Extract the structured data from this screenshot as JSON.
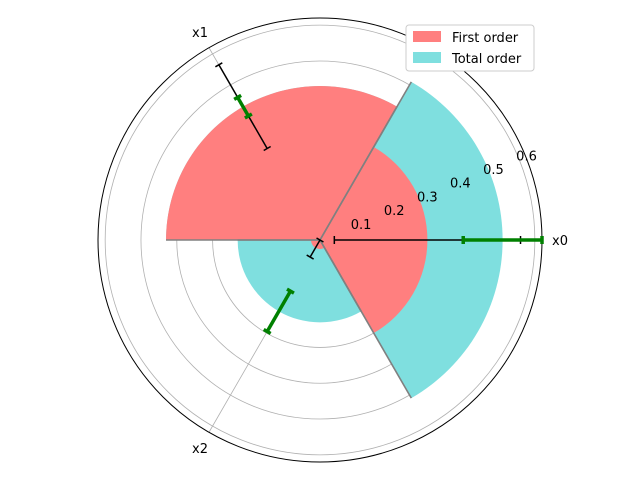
{
  "chart_data": {
    "type": "polar_bar",
    "variables": [
      "x0",
      "x1",
      "x2"
    ],
    "angles_deg": [
      0,
      120,
      240
    ],
    "radial_ticks": [
      "0.1",
      "0.2",
      "0.3",
      "0.4",
      "0.5",
      "0.6"
    ],
    "rlim": [
      0,
      0.62
    ],
    "grid": true,
    "legend_position": "top-right",
    "series": [
      {
        "name": "First order",
        "color": "#ff7f7f",
        "values": [
          0.3,
          0.43,
          0.025
        ],
        "error_ci": [
          0.52,
          0.27,
          0.06
        ],
        "error_color": "#000000"
      },
      {
        "name": "Total order",
        "color": "#7fdfdf",
        "values": [
          0.51,
          0.43,
          0.23
        ],
        "error_ci": [
          0.22,
          0.06,
          0.13
        ],
        "error_color": "#008000"
      }
    ]
  }
}
